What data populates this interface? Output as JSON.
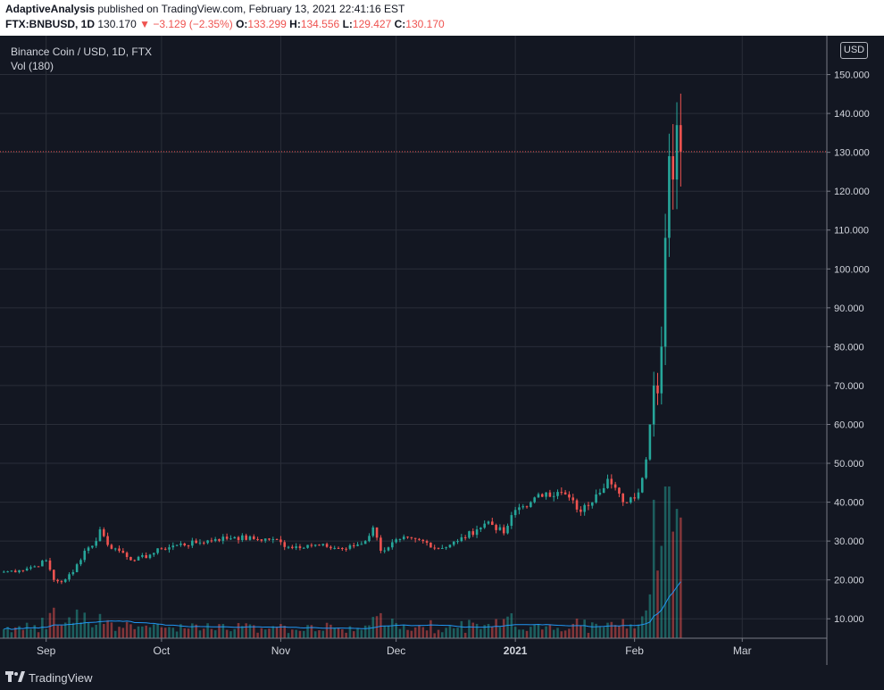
{
  "header": {
    "author": "AdaptiveAnalysis",
    "published_text": "published on TradingView.com, February 13, 2021 22:41:16 EST",
    "symbol": "FTX:BNBUSD, 1D",
    "last": "130.170",
    "change": "−3.129 (−2.35%)",
    "o_label": "O:",
    "o_value": "133.299",
    "h_label": "H:",
    "h_value": "134.556",
    "l_label": "L:",
    "l_value": "129.427",
    "c_label": "C:",
    "c_value": "130.170"
  },
  "legend": {
    "title": "Binance Coin / USD, 1D, FTX",
    "volume": "Vol (180)"
  },
  "price_axis_unit": "USD",
  "footer": {
    "brand": "TradingView",
    "logo_icon": "tradingview-logo-icon"
  },
  "colors": {
    "up": "#26a69a",
    "down": "#ef5350",
    "background": "#131722",
    "grid": "#2a2e39",
    "price_line": "#ef5350",
    "vol_ma": "#2196f3"
  },
  "chart_data": {
    "type": "candlestick",
    "title": "Binance Coin / USD, 1D, FTX",
    "x_tick_labels": [
      "Sep",
      "Oct",
      "Nov",
      "Dec",
      "2021",
      "Feb",
      "Mar"
    ],
    "y_tick_labels": [
      "10.000",
      "20.000",
      "30.000",
      "40.000",
      "50.000",
      "60.000",
      "70.000",
      "80.000",
      "90.000",
      "100.000",
      "110.000",
      "120.000",
      "130.000",
      "140.000",
      "150.000"
    ],
    "ylim": [
      5,
      160
    ],
    "last_price": 130.17,
    "grid": true,
    "legend_position": "top-left",
    "series": [
      {
        "name": "BNBUSD",
        "type": "candlestick",
        "points": [
          [
            "2020-08-21",
            22.1
          ],
          [
            "2020-08-25",
            22.5
          ],
          [
            "2020-08-29",
            23.5
          ],
          [
            "2020-09-01",
            25.0
          ],
          [
            "2020-09-03",
            20.0
          ],
          [
            "2020-09-05",
            19.5
          ],
          [
            "2020-09-08",
            22.0
          ],
          [
            "2020-09-11",
            27.5
          ],
          [
            "2020-09-14",
            30.0
          ],
          [
            "2020-09-15",
            33.0
          ],
          [
            "2020-09-17",
            29.0
          ],
          [
            "2020-09-21",
            27.0
          ],
          [
            "2020-09-24",
            25.0
          ],
          [
            "2020-09-28",
            26.5
          ],
          [
            "2020-10-01",
            28.0
          ],
          [
            "2020-10-05",
            29.0
          ],
          [
            "2020-10-10",
            29.5
          ],
          [
            "2020-10-15",
            30.5
          ],
          [
            "2020-10-20",
            31.0
          ],
          [
            "2020-10-25",
            30.5
          ],
          [
            "2020-10-30",
            30.5
          ],
          [
            "2020-11-03",
            28.5
          ],
          [
            "2020-11-08",
            29.0
          ],
          [
            "2020-11-13",
            28.5
          ],
          [
            "2020-11-18",
            28.0
          ],
          [
            "2020-11-23",
            30.0
          ],
          [
            "2020-11-25",
            33.5
          ],
          [
            "2020-11-27",
            27.5
          ],
          [
            "2020-12-02",
            30.5
          ],
          [
            "2020-12-08",
            30.0
          ],
          [
            "2020-12-12",
            28.0
          ],
          [
            "2020-12-17",
            30.0
          ],
          [
            "2020-12-22",
            33.0
          ],
          [
            "2020-12-25",
            35.0
          ],
          [
            "2020-12-29",
            32.0
          ],
          [
            "2021-01-01",
            38.0
          ],
          [
            "2021-01-05",
            40.0
          ],
          [
            "2021-01-09",
            42.5
          ],
          [
            "2021-01-14",
            42.0
          ],
          [
            "2021-01-18",
            37.5
          ],
          [
            "2021-01-22",
            42.0
          ],
          [
            "2021-01-25",
            46.0
          ],
          [
            "2021-01-29",
            40.0
          ],
          [
            "2021-02-02",
            42.5
          ],
          [
            "2021-02-04",
            51.0
          ],
          [
            "2021-02-05",
            60.0
          ],
          [
            "2021-02-06",
            70.0
          ],
          [
            "2021-02-07",
            68.0
          ],
          [
            "2021-02-08",
            80.0
          ],
          [
            "2021-02-09",
            108.0
          ],
          [
            "2021-02-10",
            129.0
          ],
          [
            "2021-02-11",
            123.0
          ],
          [
            "2021-02-12",
            137.0
          ],
          [
            "2021-02-13",
            130.17
          ]
        ]
      },
      {
        "name": "Vol (180)",
        "type": "volume",
        "peak_date": "2021-02-10"
      }
    ]
  }
}
